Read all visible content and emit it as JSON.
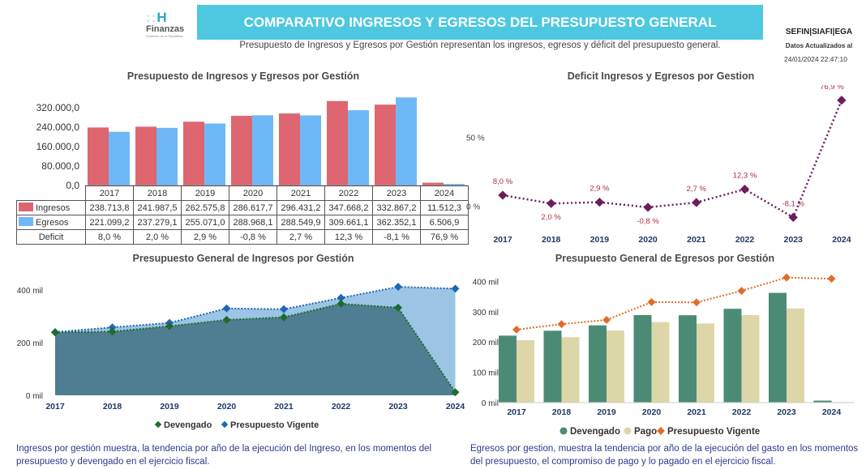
{
  "header": {
    "logo_mark": "H",
    "logo_name": "Finanzas",
    "logo_sub": "Gobierno de la República",
    "title": "COMPARATIVO INGRESOS Y EGRESOS DEL PRESUPUESTO GENERAL",
    "subtitle": "Presupuesto de Ingresos y Egresos por Gestión representan los ingresos, egresos y déficit del presupuesto general.",
    "system": "SEFIN|SIAFI|EGA",
    "updated_label": "Datos Actualizados al",
    "updated_date": "24/01/2024 22:47:10"
  },
  "colors": {
    "ingresos": "#de6670",
    "egresos": "#6fb8f7",
    "deficit": "#6b1d5c",
    "devengado": "#4b8b76",
    "pago": "#ddd6a8",
    "vigente_line": "#1f66b5",
    "vigente_area": "#9cc4e4",
    "devengado_line": "#1e6b2e",
    "vigente_egresos": "#e06b2b"
  },
  "chart_data": [
    {
      "type": "bar",
      "title": "Presupuesto de Ingresos y Egresos por Gestión",
      "categories": [
        "2017",
        "2018",
        "2019",
        "2020",
        "2021",
        "2022",
        "2023",
        "2024"
      ],
      "yticks": [
        "0,0",
        "80.000,0",
        "160.000,0",
        "240.000,0",
        "320.000,0"
      ],
      "ylim": [
        0,
        380000
      ],
      "series": [
        {
          "name": "Ingresos",
          "values": [
            238713.8,
            241987.5,
            262575.8,
            286617.7,
            296431.2,
            347668.2,
            332867.2,
            11512.3
          ],
          "labels": [
            "238.713,8",
            "241.987,5",
            "262.575,8",
            "286.617,7",
            "296.431,2",
            "347.668,2",
            "332.867,2",
            "11.512,3"
          ]
        },
        {
          "name": "Egresos",
          "values": [
            221099.2,
            237279.1,
            255071.0,
            288968.1,
            288549.9,
            309661.1,
            362352.1,
            6506.9
          ],
          "labels": [
            "221.099,2",
            "237.279,1",
            "255.071,0",
            "288.968,1",
            "288.549,9",
            "309.661,1",
            "362.352,1",
            "6.506,9"
          ]
        }
      ],
      "table_rows": [
        {
          "name": "Deficit",
          "labels": [
            "8,0 %",
            "2,0 %",
            "2,9 %",
            "-0,8 %",
            "2,7 %",
            "12,3 %",
            "-8,1 %",
            "76,9 %"
          ]
        }
      ]
    },
    {
      "type": "line",
      "title": "Deficit Ingresos y Egresos por Gestion",
      "categories": [
        "2017",
        "2018",
        "2019",
        "2020",
        "2021",
        "2022",
        "2023",
        "2024"
      ],
      "values": [
        8.0,
        2.0,
        2.9,
        -0.8,
        2.7,
        12.3,
        -8.1,
        76.9
      ],
      "labels": [
        "8,0 %",
        "2,0 %",
        "2,9 %",
        "-0,8 %",
        "2,7 %",
        "12,3 %",
        "-8,1 %",
        "76,9 %"
      ],
      "yticks": [
        {
          "v": 0,
          "label": "0 %"
        },
        {
          "v": 50,
          "label": "50 %"
        }
      ],
      "ylim": [
        -12,
        85
      ]
    },
    {
      "type": "area",
      "title": "Presupuesto General de Ingresos por Gestión",
      "categories": [
        "2017",
        "2018",
        "2019",
        "2020",
        "2021",
        "2022",
        "2023",
        "2024"
      ],
      "series": [
        {
          "name": "Devengado",
          "values": [
            238.7,
            242.0,
            262.6,
            286.6,
            296.4,
            347.7,
            332.9,
            11.5
          ]
        },
        {
          "name": "Presupuesto Vigente",
          "values": [
            240,
            258,
            275,
            330,
            327,
            370,
            412,
            405
          ]
        }
      ],
      "yticks": [
        {
          "v": 0,
          "label": "0 mil"
        },
        {
          "v": 200,
          "label": "200 mil"
        },
        {
          "v": 400,
          "label": "400 mil"
        }
      ],
      "ylim": [
        0,
        440
      ],
      "legend": [
        "Devengado",
        "Presupuesto Vigente"
      ]
    },
    {
      "type": "bar",
      "title": "Presupuesto General de Egresos por Gestión",
      "categories": [
        "2017",
        "2018",
        "2019",
        "2020",
        "2021",
        "2022",
        "2023",
        "2024"
      ],
      "series": [
        {
          "name": "Devengado",
          "values": [
            221.1,
            237.3,
            255.1,
            289.0,
            288.5,
            309.7,
            362.4,
            6.5
          ]
        },
        {
          "name": "Pago",
          "values": [
            206,
            216,
            238,
            266,
            261,
            289,
            311,
            2
          ]
        },
        {
          "name": "Presupuesto Vigente",
          "values": [
            241,
            259,
            273,
            332,
            331,
            369,
            413,
            409
          ]
        }
      ],
      "yticks": [
        {
          "v": 0,
          "label": "0 mil"
        },
        {
          "v": 100,
          "label": "100 mil"
        },
        {
          "v": 200,
          "label": "200 mil"
        },
        {
          "v": 300,
          "label": "300 mil"
        },
        {
          "v": 400,
          "label": "400 mil"
        }
      ],
      "ylim": [
        0,
        420
      ],
      "legend": [
        "Devengado",
        "Pago",
        "Presupuesto Vigente"
      ]
    }
  ],
  "notes": {
    "left": "Ingresos por gestión muestra, la tendencia por año de la ejecución del Ingreso, en los momentos del presupuesto y devengado en el ejercicio fiscal.",
    "right": "Egresos por gestion, muestra la tendencia por año de la ejecución del gasto en los momentos del presupuesto, el compromiso de pago y lo pagado en el ejercicio fiscal."
  }
}
